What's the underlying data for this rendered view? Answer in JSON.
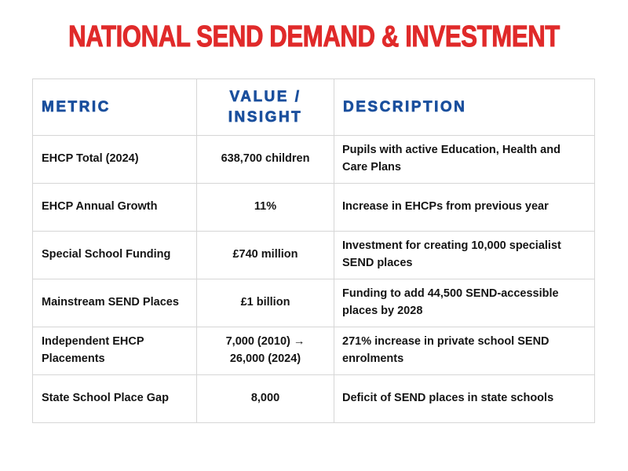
{
  "title": "NATIONAL SEND DEMAND & INVESTMENT",
  "colors": {
    "title_red": "#e02a2a",
    "header_blue": "#1a4f9d",
    "body_text": "#141414",
    "table_border": "#d6d6d6",
    "background": "#ffffff"
  },
  "table": {
    "headers": {
      "metric": "METRIC",
      "value": "VALUE /\nINSIGHT",
      "description": "DESCRIPTION"
    },
    "rows": [
      {
        "metric": "EHCP Total (2024)",
        "value": "638,700 children",
        "description": "Pupils with active Education, Health and Care Plans"
      },
      {
        "metric": "EHCP Annual Growth",
        "value": "11%",
        "description": "Increase in EHCPs from previous year"
      },
      {
        "metric": "Special School Funding",
        "value": "£740 million",
        "description": "Investment for creating 10,000 specialist SEND places"
      },
      {
        "metric": "Mainstream SEND Places",
        "value": "£1 billion",
        "description": "Funding to add 44,500 SEND-accessible places by 2028"
      },
      {
        "metric": "Independent EHCP Placements",
        "value": "7,000 (2010) →\n26,000 (2024)",
        "description": "271% increase in private school SEND enrolments"
      },
      {
        "metric": "State School Place Gap",
        "value": "8,000",
        "description": "Deficit of SEND places in state schools"
      }
    ]
  }
}
